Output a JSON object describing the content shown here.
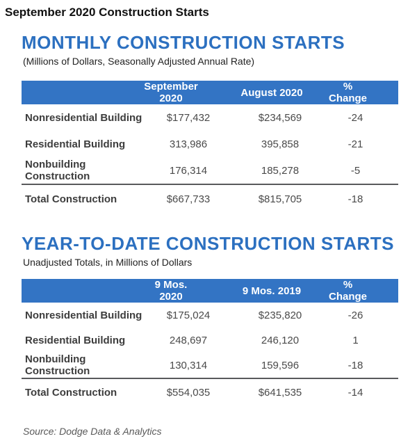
{
  "page": {
    "title": "September 2020 Construction Starts",
    "source": "Source: Dodge Data & Analytics"
  },
  "colors": {
    "accent_heading_blue": "#2c70c0",
    "table_header_bar_blue": "#3374c4",
    "label_text": "#3d3d3d",
    "divider_dark": "#58595b"
  },
  "sections": [
    {
      "id": "monthly",
      "heading": "MONTHLY CONSTRUCTION STARTS",
      "subtitle": "(Millions of Dollars, Seasonally Adjusted Annual Rate)",
      "table": {
        "col_headers": [
          "September 2020",
          "August 2020",
          "% Change"
        ],
        "rows": [
          {
            "label": "Nonresidential Building",
            "values": [
              "$177,432",
              "$234,569",
              "-24"
            ]
          },
          {
            "label": "Residential Building",
            "values": [
              "313,986",
              "395,858",
              "-21"
            ]
          },
          {
            "label": "Nonbuilding Construction",
            "values": [
              "176,314",
              "185,278",
              "-5"
            ]
          }
        ],
        "total_row": {
          "label": "Total Construction",
          "values": [
            "$667,733",
            "$815,705",
            "-18"
          ]
        }
      }
    },
    {
      "id": "ytd",
      "heading": "YEAR-TO-DATE CONSTRUCTION STARTS",
      "subtitle": "Unadjusted Totals, in Millions of Dollars",
      "table": {
        "col_headers": [
          "9 Mos. 2020",
          "9 Mos. 2019",
          "% Change"
        ],
        "rows": [
          {
            "label": "Nonresidential Building",
            "values": [
              "$175,024",
              "$235,820",
              "-26"
            ]
          },
          {
            "label": "Residential Building",
            "values": [
              "248,697",
              "246,120",
              "1"
            ]
          },
          {
            "label": "Nonbuilding Construction",
            "values": [
              "130,314",
              "159,596",
              "-18"
            ]
          }
        ],
        "total_row": {
          "label": "Total Construction",
          "values": [
            "$554,035",
            "$641,535",
            "-14"
          ]
        }
      }
    }
  ]
}
